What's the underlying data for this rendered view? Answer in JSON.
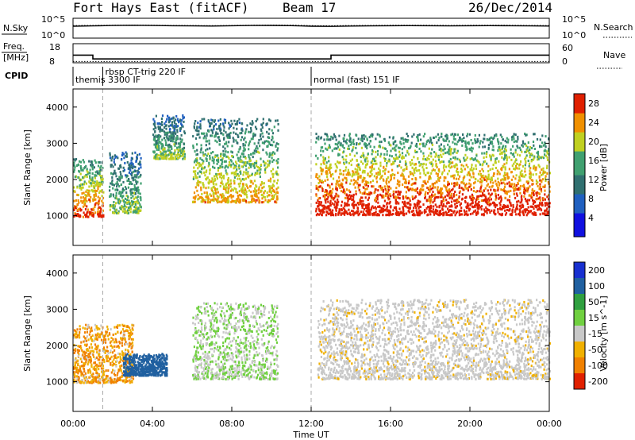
{
  "header": {
    "station": "Fort Hays East (fitACF)",
    "beam": "Beam 17",
    "date": "26/Dec/2014"
  },
  "left_labels": {
    "nsky": "N.Sky",
    "freq": "Freq.",
    "freq_unit": "[MHz]",
    "cpid": "CPID",
    "freq_ticks": [
      "18",
      "8"
    ],
    "nsky_ticks": [
      "10^5",
      "10^0"
    ]
  },
  "right_labels": {
    "nsearch": "N.Search",
    "nave": "Nave",
    "nave_ticks": [
      "60",
      "0"
    ],
    "nsearch_ticks": [
      "10^5",
      "10^0"
    ]
  },
  "cpid_segments": [
    {
      "label": "themis 3300 IF",
      "start_hour": 0.0,
      "end_hour": 1.5
    },
    {
      "label": "rbsp CT-trig 220 IF",
      "start_hour": 1.5,
      "end_hour": 12.0
    },
    {
      "label": "normal (fast) 151 IF",
      "start_hour": 12.0,
      "end_hour": 24.0
    }
  ],
  "x_axis": {
    "label": "Time UT",
    "ticks": [
      "00:00",
      "04:00",
      "08:00",
      "12:00",
      "16:00",
      "20:00",
      "00:00"
    ]
  },
  "chart_data": [
    {
      "type": "line",
      "panel": "N.Sky / N.Search",
      "x_hours": [
        0,
        1,
        2,
        3,
        4,
        5,
        6,
        7,
        8,
        9,
        10,
        11,
        12,
        13,
        14,
        15,
        16,
        17,
        18,
        19,
        20,
        21,
        22,
        23,
        24
      ],
      "series": [
        {
          "name": "N.Sky",
          "values": [
            1000,
            1200,
            1500,
            1700,
            1500,
            1300,
            1200,
            1100,
            1300,
            1500,
            1600,
            1400,
            1000,
            900,
            1100,
            1200,
            1300,
            1400,
            1300,
            1200,
            1300,
            1400,
            1300,
            1200,
            1100
          ]
        },
        {
          "name": "N.Search",
          "values": [
            1500,
            1600,
            1800,
            2000,
            1800,
            1600,
            1500,
            1400,
            1600,
            1800,
            2000,
            1900,
            1400,
            1300,
            1500,
            1600,
            1700,
            1800,
            1700,
            1600,
            1700,
            1800,
            1700,
            1600,
            1500
          ]
        }
      ],
      "yscale": "log"
    },
    {
      "type": "line",
      "panel": "Freq / Nave",
      "series": [
        {
          "name": "Freq.",
          "unit": "MHz",
          "x_hours": [
            0,
            1.0,
            1.0,
            13.0,
            13.0,
            24
          ],
          "values": [
            12,
            12,
            10,
            10,
            12,
            12
          ]
        },
        {
          "name": "Nave",
          "x_hours": [
            0,
            24
          ],
          "values": [
            4,
            4
          ]
        }
      ],
      "ylim_freq": [
        8,
        18
      ],
      "ylim_nave": [
        0,
        60
      ]
    },
    {
      "type": "heatmap",
      "panel": "Power",
      "xlabel": "Time UT",
      "ylabel": "Slant Range [km]",
      "x_range_hours": [
        0,
        24
      ],
      "y_range_km": [
        180,
        4500
      ],
      "y_ticks": [
        1000,
        2000,
        3000,
        4000
      ],
      "colorbar": {
        "label": "Power [dB]",
        "ticks": [
          4,
          8,
          12,
          16,
          20,
          24,
          28
        ],
        "range": [
          0,
          30
        ],
        "colors": [
          "#1010e0",
          "#2060c0",
          "#307070",
          "#40a070",
          "#c0d020",
          "#f09000",
          "#e02000"
        ]
      },
      "echo_regions": [
        {
          "t_start": 0.0,
          "t_end": 1.5,
          "range_km": [
            1000,
            2600
          ],
          "typical_power_db": 22
        },
        {
          "t_start": 1.8,
          "t_end": 3.4,
          "range_km": [
            1100,
            2800
          ],
          "typical_power_db": 14
        },
        {
          "t_start": 4.0,
          "t_end": 5.6,
          "range_km": [
            2600,
            3800
          ],
          "typical_power_db": 14
        },
        {
          "t_start": 6.0,
          "t_end": 10.3,
          "range_km": [
            1400,
            3700
          ],
          "typical_power_db": 18
        },
        {
          "t_start": 12.2,
          "t_end": 24.0,
          "range_km": [
            1050,
            3300
          ],
          "typical_power_db": 24
        }
      ]
    },
    {
      "type": "heatmap",
      "panel": "Velocity",
      "xlabel": "Time UT",
      "ylabel": "Slant Range [km]",
      "x_range_hours": [
        0,
        24
      ],
      "y_range_km": [
        180,
        4500
      ],
      "y_ticks": [
        1000,
        2000,
        3000,
        4000
      ],
      "colorbar": {
        "label": "Velocity [m s^-1]",
        "ticks": [
          200,
          100,
          50,
          15,
          -15,
          -50,
          -100,
          -200
        ],
        "colors": [
          "#1830d0",
          "#2060a0",
          "#30a040",
          "#70d040",
          "#c8c8c8",
          "#f0b000",
          "#f08000",
          "#e02000"
        ]
      },
      "echo_regions": [
        {
          "t_start": 0.0,
          "t_end": 3.0,
          "range_km": [
            1000,
            2600
          ],
          "typical_velocity": -30
        },
        {
          "t_start": 2.5,
          "t_end": 4.7,
          "range_km": [
            1200,
            1800
          ],
          "typical_velocity": 180
        },
        {
          "t_start": 6.0,
          "t_end": 10.3,
          "range_km": [
            1100,
            3200
          ],
          "typical_velocity": 30
        },
        {
          "t_start": 12.3,
          "t_end": 24.0,
          "range_km": [
            1100,
            3300
          ],
          "typical_velocity": 0
        }
      ]
    }
  ]
}
